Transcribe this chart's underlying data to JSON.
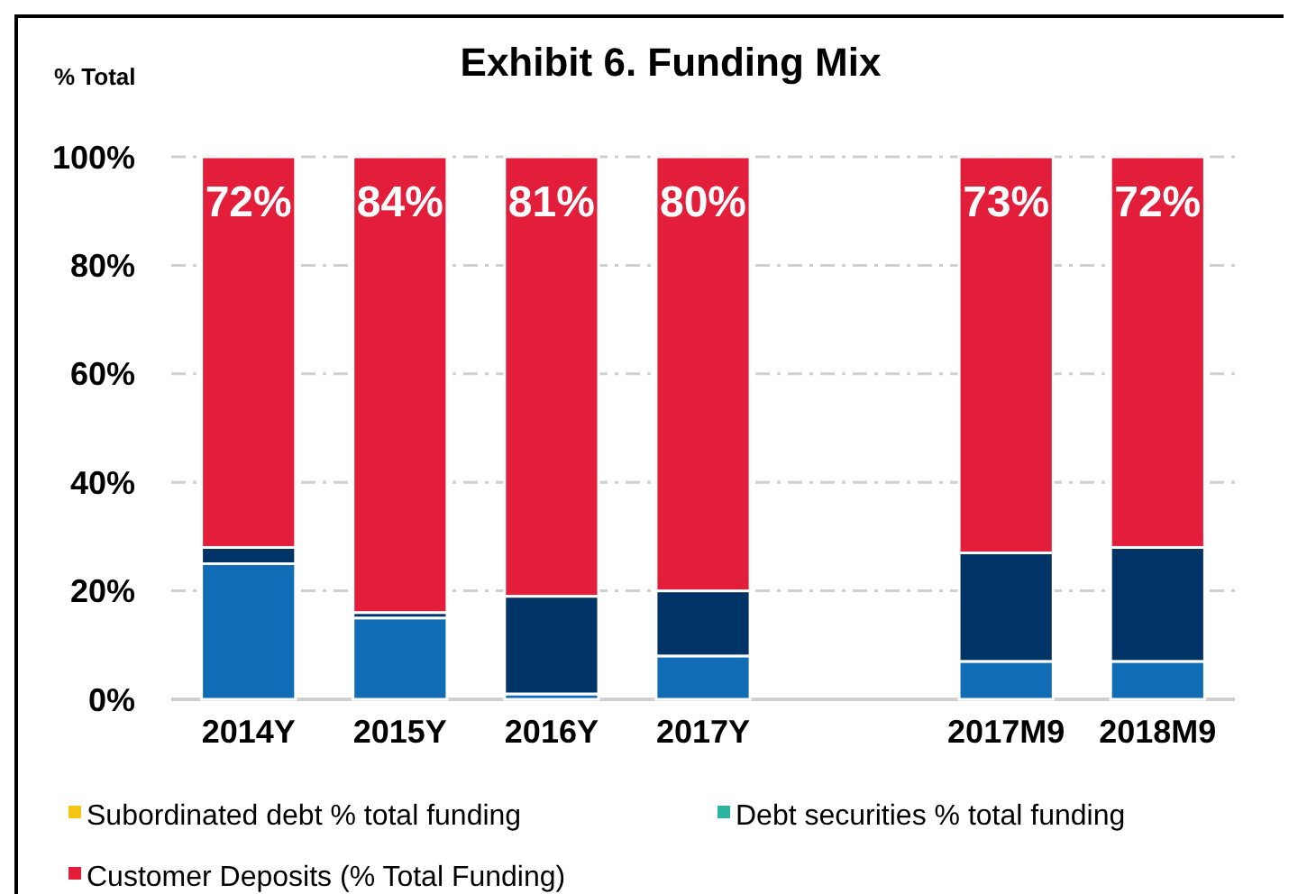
{
  "chart_data": {
    "type": "bar",
    "title": "Exhibit 6. Funding Mix",
    "ylabel": "% Total",
    "stacked": true,
    "categories": [
      "2014Y",
      "2015Y",
      "2016Y",
      "2017Y",
      null,
      "2017M9",
      "2018M9"
    ],
    "ylim": [
      0,
      100
    ],
    "yticks": [
      {
        "value": 0,
        "label": "0%"
      },
      {
        "value": 20,
        "label": "20%"
      },
      {
        "value": 40,
        "label": "40%"
      },
      {
        "value": 60,
        "label": "60%"
      },
      {
        "value": 80,
        "label": "80%"
      },
      {
        "value": 100,
        "label": "100%"
      }
    ],
    "grid": "y",
    "legend": "bottom",
    "series": [
      {
        "color": "#116cb6",
        "values": [
          25,
          15,
          1,
          8,
          null,
          7,
          7
        ]
      },
      {
        "color": "#003366",
        "values": [
          3,
          1,
          18,
          12,
          null,
          20,
          21
        ]
      },
      {
        "name": "Subordinated debt % total funding",
        "color": "#f5c518",
        "values": [
          0,
          0,
          0,
          0,
          null,
          0,
          0
        ]
      },
      {
        "name": "Debt securities % total funding",
        "color": "#2bb5a0",
        "values": [
          0,
          0,
          0,
          0,
          null,
          0,
          0
        ]
      },
      {
        "name": "Customer Deposits (% Total Funding)",
        "color": "#e31e3a",
        "values": [
          72,
          84,
          81,
          80,
          null,
          73,
          72
        ],
        "value_labels": [
          "72%",
          "84%",
          "81%",
          "80%",
          null,
          "73%",
          "72%"
        ]
      }
    ]
  }
}
